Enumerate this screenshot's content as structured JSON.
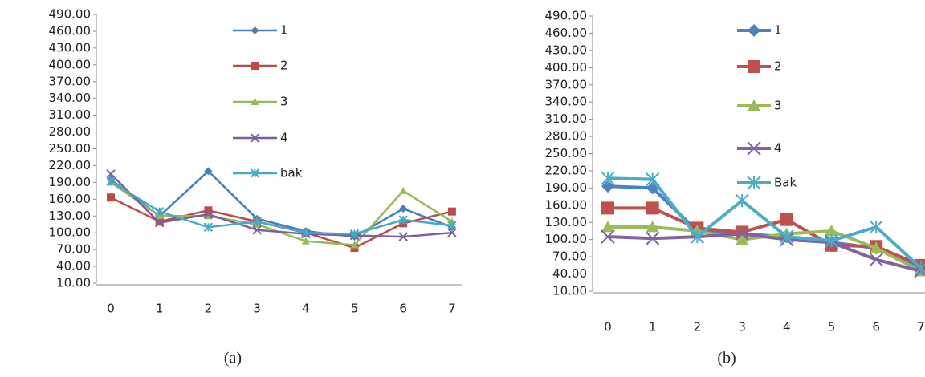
{
  "chart_data": [
    {
      "type": "line",
      "caption": "(a)",
      "categories": [
        "0",
        "1",
        "2",
        "3",
        "4",
        "5",
        "6",
        "7"
      ],
      "ylim": [
        10,
        490
      ],
      "yticks": [
        {
          "value": 10,
          "label": "10.00"
        },
        {
          "value": 40,
          "label": "40.00"
        },
        {
          "value": 70,
          "label": "70.00"
        },
        {
          "value": 100,
          "label": "100.00"
        },
        {
          "value": 130,
          "label": "130.00"
        },
        {
          "value": 160,
          "label": "160.00"
        },
        {
          "value": 190,
          "label": "190.00"
        },
        {
          "value": 220,
          "label": "220.00"
        },
        {
          "value": 250,
          "label": "250.00"
        },
        {
          "value": 280,
          "label": "280.00"
        },
        {
          "value": 310,
          "label": "310.00"
        },
        {
          "value": 340,
          "label": "340.00"
        },
        {
          "value": 370,
          "label": "370.00"
        },
        {
          "value": 400,
          "label": "400.00"
        },
        {
          "value": 430,
          "label": "430.00"
        },
        {
          "value": 460,
          "label": "460.00"
        },
        {
          "value": 490,
          "label": "490.00"
        }
      ],
      "series": [
        {
          "name": "1",
          "color": "#4a7ebb",
          "values": [
            195,
            130,
            210,
            125,
            103,
            93,
            143,
            110
          ]
        },
        {
          "name": "2",
          "color": "#be4b48",
          "values": [
            163,
            120,
            140,
            120,
            100,
            73,
            117,
            138
          ]
        },
        {
          "name": "3",
          "color": "#98b954",
          "values": [
            190,
            130,
            130,
            115,
            85,
            78,
            175,
            120
          ]
        },
        {
          "name": "4",
          "color": "#7d5fa0",
          "values": [
            205,
            118,
            133,
            105,
            98,
            95,
            93,
            100
          ]
        },
        {
          "name": "bak",
          "color": "#46aac5",
          "values": [
            192,
            138,
            110,
            120,
            100,
            98,
            123,
            113
          ]
        }
      ]
    },
    {
      "type": "line",
      "caption": "(b)",
      "categories": [
        "0",
        "1",
        "2",
        "3",
        "4",
        "5",
        "6",
        "7"
      ],
      "ylim": [
        10,
        490
      ],
      "yticks": [
        {
          "value": 10,
          "label": "10.00"
        },
        {
          "value": 40,
          "label": "40.00"
        },
        {
          "value": 70,
          "label": "70.00"
        },
        {
          "value": 100,
          "label": "100.00"
        },
        {
          "value": 130,
          "label": "130.00"
        },
        {
          "value": 160,
          "label": "160.00"
        },
        {
          "value": 190,
          "label": "190.00"
        },
        {
          "value": 220,
          "label": "220.00"
        },
        {
          "value": 250,
          "label": "250.00"
        },
        {
          "value": 280,
          "label": "280.00"
        },
        {
          "value": 310,
          "label": "310.00"
        },
        {
          "value": 340,
          "label": "340.00"
        },
        {
          "value": 370,
          "label": "370.00"
        },
        {
          "value": 400,
          "label": "400.00"
        },
        {
          "value": 430,
          "label": "430.00"
        },
        {
          "value": 460,
          "label": "460.00"
        },
        {
          "value": 490,
          "label": "490.00"
        }
      ],
      "series": [
        {
          "name": "1",
          "color": "#4f81bd",
          "values": [
            193,
            190,
            115,
            110,
            105,
            95,
            85,
            50
          ]
        },
        {
          "name": "2",
          "color": "#c0504d",
          "values": [
            155,
            155,
            120,
            113,
            135,
            90,
            88,
            55
          ]
        },
        {
          "name": "3",
          "color": "#9bbb59",
          "values": [
            122,
            122,
            115,
            100,
            110,
            115,
            85,
            45
          ]
        },
        {
          "name": "4",
          "color": "#8064a2",
          "values": [
            105,
            102,
            105,
            110,
            100,
            95,
            65,
            45
          ]
        },
        {
          "name": "Bak",
          "color": "#4bacc6",
          "values": [
            207,
            205,
            105,
            168,
            105,
            98,
            122,
            50
          ]
        }
      ]
    }
  ]
}
